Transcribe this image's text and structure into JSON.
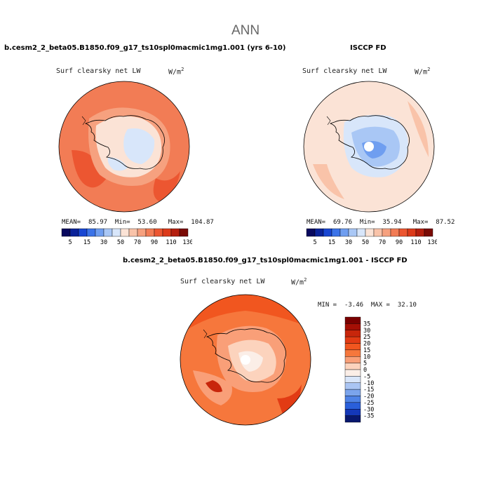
{
  "title": "ANN",
  "panels": [
    {
      "title": "b.cesm2_2_beta05.B1850.f09_g17_ts10spl0macmic1mg1.001 (yrs 6-10)",
      "variable": "Surf clearsky net LW",
      "units_base": "W/m",
      "units_exp": "2",
      "stats": {
        "mean_label": "MEAN=",
        "mean": "85.97",
        "min_label": "Min=",
        "min": "53.60",
        "max_label": "Max=",
        "max": "104.87"
      },
      "colorbar": {
        "levels": [
          "5",
          "15",
          "30",
          "50",
          "70",
          "90",
          "110",
          "130"
        ],
        "colors": [
          "#08085e",
          "#0a2299",
          "#1846d2",
          "#3b73e8",
          "#6f9ef0",
          "#a9c7f5",
          "#d8e6fa",
          "#fbe3d6",
          "#f9c3a9",
          "#f6a17f",
          "#f27c55",
          "#ec5631",
          "#dc3a1a",
          "#b41f0e",
          "#7a0b05"
        ]
      }
    },
    {
      "title": "ISCCP FD",
      "variable": "Surf clearsky net LW",
      "units_base": "W/m",
      "units_exp": "2",
      "stats": {
        "mean_label": "MEAN=",
        "mean": "69.76",
        "min_label": "Min=",
        "min": "35.94",
        "max_label": "Max=",
        "max": "87.52"
      },
      "colorbar": {
        "levels": [
          "5",
          "15",
          "30",
          "50",
          "70",
          "90",
          "110",
          "130"
        ],
        "colors": [
          "#08085e",
          "#0a2299",
          "#1846d2",
          "#3b73e8",
          "#6f9ef0",
          "#a9c7f5",
          "#d8e6fa",
          "#fbe3d6",
          "#f9c3a9",
          "#f6a17f",
          "#f27c55",
          "#ec5631",
          "#dc3a1a",
          "#b41f0e",
          "#7a0b05"
        ]
      }
    },
    {
      "title": "b.cesm2_2_beta05.B1850.f09_g17_ts10spl0macmic1mg1.001 - ISCCP FD",
      "variable": "Surf clearsky net LW",
      "units_base": "W/m",
      "units_exp": "2",
      "stats": {
        "min_label": "MIN =",
        "min": "-3.46",
        "max_label": "MAX =",
        "max": "32.10"
      },
      "colorbar": {
        "levels": [
          "35",
          "30",
          "25",
          "20",
          "15",
          "10",
          "5",
          "0",
          "-5",
          "-10",
          "-15",
          "-20",
          "-25",
          "-30",
          "-35"
        ],
        "colors": [
          "#7a0000",
          "#a50f05",
          "#c8260b",
          "#e23b14",
          "#f1561f",
          "#f6773c",
          "#f99f78",
          "#fcd3bd",
          "#fbeee7",
          "#d9e6fa",
          "#aac5f3",
          "#7ba4ec",
          "#4f83e6",
          "#2a5fda",
          "#1438b8",
          "#08186e"
        ]
      }
    }
  ],
  "map_colors": {
    "land_outline": "#000000",
    "orange_bg": "#f27c55",
    "orange_light": "#f6a17f",
    "peach": "#f9c3a9",
    "pale": "#fbe3d6",
    "white": "#ffffff",
    "lightblue": "#d8e6fa",
    "blue": "#a9c7f5",
    "bluemid": "#6f9ef0",
    "red": "#ec5631",
    "darkred": "#dc3a1a"
  }
}
